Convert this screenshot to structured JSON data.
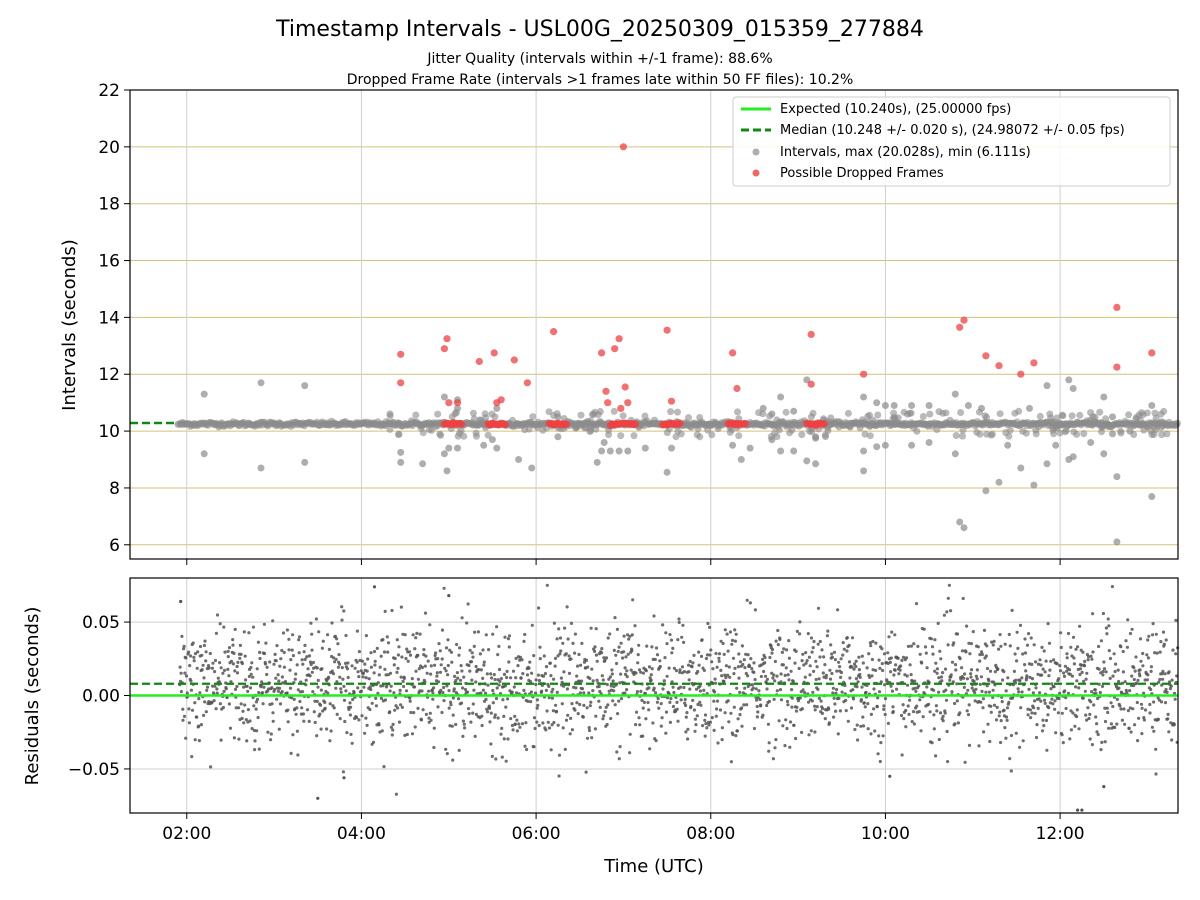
{
  "figure": {
    "title": "Timestamp Intervals - USL00G_20250309_015359_277884",
    "subtitle1": "Jitter Quality (intervals within +/-1 frame): 88.6%",
    "subtitle2": "Dropped Frame Rate (intervals >1 frames late within 50 FF files): 10.2%"
  },
  "colors": {
    "expected": "#22ee22",
    "median": "#118811",
    "intervals": "#8c8c8c",
    "dropped": "#f04040",
    "grid_gold": "#d4c07a",
    "grid_gray": "#cfcfcf",
    "residual_points": "#555555"
  },
  "chart_data": [
    {
      "type": "scatter",
      "title": "",
      "xlabel": "",
      "ylabel": "Intervals (seconds)",
      "xlim_hours": [
        1.35,
        13.35
      ],
      "ylim": [
        5.5,
        22
      ],
      "yticks": [
        6,
        8,
        10,
        12,
        14,
        16,
        18,
        20,
        22
      ],
      "xtick_hours": [
        2,
        4,
        6,
        8,
        10,
        12
      ],
      "grid": "on",
      "legend": {
        "placement": "top-right",
        "entries": [
          "Expected (10.240s), (25.00000 fps)",
          "Median (10.248 +/- 0.020 s), (24.98072 +/- 0.05 fps)",
          "Intervals, max (20.028s), min (6.111s)",
          "Possible Dropped Frames"
        ]
      },
      "expected_value": 10.24,
      "median_value": 10.248,
      "series_intervals_sampled": [
        [
          1.9,
          10.24
        ],
        [
          2.2,
          11.3
        ],
        [
          2.2,
          9.2
        ],
        [
          2.85,
          11.7
        ],
        [
          2.85,
          8.7
        ],
        [
          3.35,
          11.6
        ],
        [
          3.35,
          8.9
        ],
        [
          4.45,
          9.25
        ],
        [
          4.45,
          8.9
        ],
        [
          4.7,
          8.85
        ],
        [
          4.95,
          11.2
        ],
        [
          4.95,
          9.2
        ],
        [
          4.98,
          8.6
        ],
        [
          5.0,
          9.4
        ],
        [
          5.1,
          9.4
        ],
        [
          5.1,
          11.1
        ],
        [
          5.1,
          10.8
        ],
        [
          5.4,
          9.5
        ],
        [
          5.5,
          9.7
        ],
        [
          5.55,
          10.8
        ],
        [
          5.55,
          9.4
        ],
        [
          5.8,
          9.0
        ],
        [
          5.95,
          8.7
        ],
        [
          6.25,
          9.8
        ],
        [
          6.25,
          10.5
        ],
        [
          6.7,
          8.9
        ],
        [
          6.75,
          9.3
        ],
        [
          6.78,
          9.6
        ],
        [
          6.85,
          9.3
        ],
        [
          6.95,
          9.3
        ],
        [
          7.05,
          9.3
        ],
        [
          7.25,
          9.4
        ],
        [
          7.5,
          8.55
        ],
        [
          7.55,
          9.4
        ],
        [
          8.25,
          9.5
        ],
        [
          8.35,
          9.0
        ],
        [
          8.45,
          9.4
        ],
        [
          8.6,
          10.8
        ],
        [
          8.7,
          9.7
        ],
        [
          8.7,
          10.6
        ],
        [
          8.8,
          11.2
        ],
        [
          8.8,
          9.3
        ],
        [
          8.95,
          10.7
        ],
        [
          8.95,
          9.3
        ],
        [
          9.1,
          11.8
        ],
        [
          9.1,
          8.95
        ],
        [
          9.2,
          9.75
        ],
        [
          9.2,
          9.8
        ],
        [
          9.2,
          8.85
        ],
        [
          9.75,
          11.2
        ],
        [
          9.75,
          9.3
        ],
        [
          9.75,
          8.6
        ],
        [
          9.9,
          11.0
        ],
        [
          9.9,
          9.45
        ],
        [
          10.0,
          10.9
        ],
        [
          10.0,
          9.5
        ],
        [
          10.1,
          10.9
        ],
        [
          10.3,
          10.9
        ],
        [
          10.3,
          9.5
        ],
        [
          10.5,
          10.9
        ],
        [
          10.5,
          9.6
        ],
        [
          10.8,
          11.3
        ],
        [
          10.8,
          9.2
        ],
        [
          10.85,
          6.8
        ],
        [
          10.9,
          6.6
        ],
        [
          10.95,
          10.9
        ],
        [
          11.1,
          10.8
        ],
        [
          11.15,
          7.9
        ],
        [
          11.3,
          8.2
        ],
        [
          11.4,
          9.5
        ],
        [
          11.55,
          8.7
        ],
        [
          11.65,
          10.8
        ],
        [
          11.7,
          8.1
        ],
        [
          11.85,
          11.6
        ],
        [
          11.85,
          8.85
        ],
        [
          11.95,
          9.5
        ],
        [
          12.1,
          11.8
        ],
        [
          12.1,
          9.0
        ],
        [
          12.15,
          11.5
        ],
        [
          12.15,
          9.1
        ],
        [
          12.35,
          9.6
        ],
        [
          12.5,
          11.2
        ],
        [
          12.5,
          9.2
        ],
        [
          12.6,
          10.5
        ],
        [
          12.6,
          9.9
        ],
        [
          12.65,
          8.4
        ],
        [
          12.65,
          6.1
        ],
        [
          12.8,
          10.0
        ],
        [
          13.05,
          10.9
        ],
        [
          13.05,
          7.7
        ]
      ],
      "series_dropped": [
        [
          4.45,
          12.7
        ],
        [
          4.45,
          11.7
        ],
        [
          4.95,
          12.9
        ],
        [
          4.98,
          13.25
        ],
        [
          5.0,
          11.0
        ],
        [
          5.05,
          10.3
        ],
        [
          5.1,
          11.0
        ],
        [
          5.35,
          12.45
        ],
        [
          5.52,
          12.75
        ],
        [
          5.55,
          11.0
        ],
        [
          5.6,
          11.1
        ],
        [
          5.75,
          12.5
        ],
        [
          5.9,
          11.7
        ],
        [
          6.2,
          13.5
        ],
        [
          6.75,
          12.75
        ],
        [
          6.8,
          11.4
        ],
        [
          6.82,
          11.0
        ],
        [
          6.9,
          12.9
        ],
        [
          6.95,
          13.25
        ],
        [
          6.97,
          10.8
        ],
        [
          7.0,
          20.0
        ],
        [
          7.02,
          11.55
        ],
        [
          7.05,
          11.0
        ],
        [
          7.5,
          13.55
        ],
        [
          7.55,
          11.05
        ],
        [
          8.25,
          12.75
        ],
        [
          8.3,
          11.5
        ],
        [
          9.15,
          13.4
        ],
        [
          9.15,
          11.65
        ],
        [
          9.75,
          12.0
        ],
        [
          10.85,
          13.65
        ],
        [
          10.9,
          13.9
        ],
        [
          11.15,
          12.65
        ],
        [
          11.3,
          12.3
        ],
        [
          11.55,
          12.0
        ],
        [
          11.7,
          12.4
        ],
        [
          12.65,
          14.35
        ],
        [
          12.65,
          12.25
        ],
        [
          13.05,
          12.75
        ]
      ],
      "dropped_clusters_hours": [
        [
          4.95,
          5.15
        ],
        [
          5.45,
          5.65
        ],
        [
          6.15,
          6.35
        ],
        [
          6.85,
          7.15
        ],
        [
          7.45,
          7.65
        ],
        [
          8.2,
          8.4
        ],
        [
          9.1,
          9.3
        ]
      ]
    },
    {
      "type": "scatter",
      "title": "",
      "xlabel": "Time (UTC)",
      "ylabel": "Residuals (seconds)",
      "xlim_hours": [
        1.35,
        13.35
      ],
      "ylim": [
        -0.08,
        0.08
      ],
      "yticks": [
        -0.05,
        0.0,
        0.05
      ],
      "ytick_labels": [
        "−0.05",
        "0.00",
        "0.05"
      ],
      "xtick_hours": [
        2,
        4,
        6,
        8,
        10,
        12
      ],
      "xtick_labels": [
        "02:00",
        "04:00",
        "06:00",
        "08:00",
        "10:00",
        "12:00"
      ],
      "expected_residual": 0.0,
      "median_residual": 0.008,
      "residual_spread_sd": 0.02,
      "residual_x_range_hours": [
        1.92,
        13.35
      ],
      "residual_point_count": 2400,
      "residual_outliers": [
        [
          1.93,
          0.064
        ],
        [
          3.5,
          -0.07
        ],
        [
          3.8,
          -0.056
        ],
        [
          4.15,
          0.074
        ],
        [
          5.0,
          0.068
        ],
        [
          12.2,
          -0.078
        ],
        [
          12.25,
          -0.078
        ],
        [
          10.05,
          -0.055
        ],
        [
          12.5,
          -0.062
        ]
      ]
    }
  ]
}
